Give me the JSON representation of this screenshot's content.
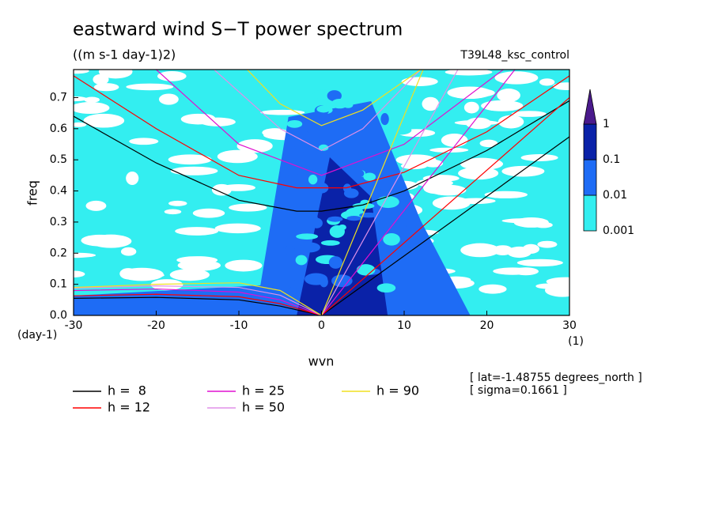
{
  "chart_data": {
    "type": "contour",
    "title": "eastward wind S−T power spectrum",
    "subtitle": "((m s-1 day-1)2)",
    "run_label": "T39L48_ksc_control",
    "y_label": "freq",
    "x_label": "wvn",
    "y_units": "(day-1)",
    "x_units": "(1)",
    "notes": [
      "[ lat=-1.48755 degrees_north ]",
      "[ sigma=0.1661 ]"
    ],
    "xlim": [
      -30,
      30
    ],
    "ylim": [
      0,
      0.79
    ],
    "xticks": [
      -30,
      -20,
      -10,
      0,
      10,
      20,
      30
    ],
    "yticks": [
      {
        "value": 0,
        "label": "0.0"
      },
      0.1,
      0.2,
      0.3,
      0.4,
      0.5,
      0.6,
      0.7
    ],
    "levels": [
      0.001,
      0.01,
      0.1,
      1
    ],
    "level_colors": [
      "#33eef0",
      "#1e6cf5",
      "#0a22a8",
      "#4a1a8c"
    ],
    "series": [
      {
        "name": "h =  8",
        "color": "#000000",
        "curves": [
          {
            "x": [
              0,
              30
            ],
            "values": [
              0,
              0.574
            ]
          },
          {
            "x": [
              -30,
              -20,
              -10,
              -3,
              0,
              5,
              10,
              20,
              30
            ],
            "values": [
              0.64,
              0.49,
              0.37,
              0.335,
              0.335,
              0.355,
              0.4,
              0.53,
              0.69
            ]
          },
          {
            "x": [
              -30,
              -20,
              -10,
              -5,
              0
            ],
            "values": [
              0.055,
              0.058,
              0.05,
              0.03,
              0
            ]
          }
        ]
      },
      {
        "name": "h = 12",
        "color": "#ff0000",
        "curves": [
          {
            "x": [
              0,
              30
            ],
            "values": [
              0,
              0.7
            ]
          },
          {
            "x": [
              -30,
              -20,
              -10,
              -3,
              3,
              10,
              20,
              30
            ],
            "values": [
              0.77,
              0.6,
              0.45,
              0.41,
              0.41,
              0.46,
              0.59,
              0.77
            ]
          },
          {
            "x": [
              -30,
              -20,
              -10,
              -5,
              0
            ],
            "values": [
              0.063,
              0.068,
              0.06,
              0.038,
              0
            ]
          }
        ]
      },
      {
        "name": "h = 25",
        "color": "#e010d0",
        "curves": [
          {
            "x": [
              0,
              23.4
            ],
            "values": [
              0,
              0.79
            ]
          },
          {
            "x": [
              -20,
              -10,
              0,
              10,
              20,
              22
            ],
            "values": [
              0.79,
              0.55,
              0.45,
              0.55,
              0.75,
              0.79
            ]
          },
          {
            "x": [
              -30,
              -20,
              -10,
              -5,
              0
            ],
            "values": [
              0.08,
              0.085,
              0.075,
              0.05,
              0
            ]
          }
        ]
      },
      {
        "name": "h = 50",
        "color": "#e090e8",
        "curves": [
          {
            "x": [
              0,
              16.5
            ],
            "values": [
              0,
              0.79
            ]
          },
          {
            "x": [
              -13,
              -5,
              0,
              5,
              12
            ],
            "values": [
              0.79,
              0.6,
              0.53,
              0.6,
              0.79
            ]
          },
          {
            "x": [
              -30,
              -20,
              -10,
              -5,
              0
            ],
            "values": [
              0.088,
              0.095,
              0.09,
              0.065,
              0
            ]
          }
        ]
      },
      {
        "name": "h = 90",
        "color": "#f0e020",
        "curves": [
          {
            "x": [
              0,
              12.3
            ],
            "values": [
              0,
              0.79
            ]
          },
          {
            "x": [
              -9,
              -5,
              0,
              5,
              12
            ],
            "values": [
              0.79,
              0.68,
              0.61,
              0.66,
              0.79
            ]
          },
          {
            "x": [
              -30,
              -20,
              -10,
              -5,
              0
            ],
            "values": [
              0.09,
              0.1,
              0.105,
              0.08,
              0
            ]
          }
        ]
      }
    ]
  }
}
